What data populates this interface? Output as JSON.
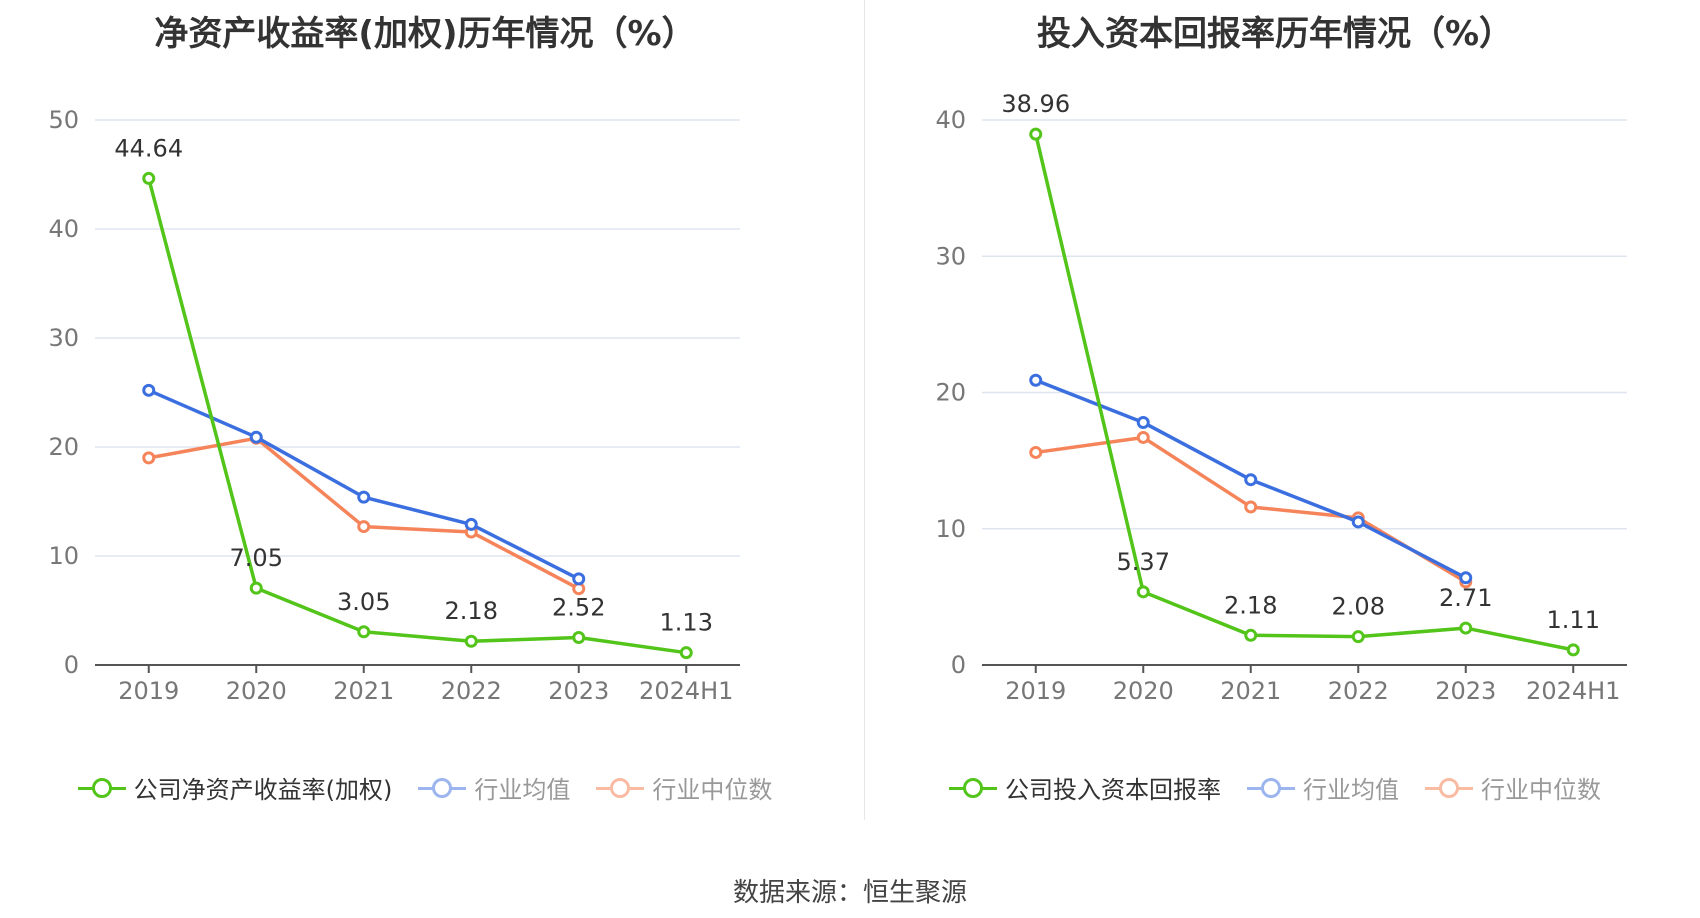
{
  "source_label": "数据来源：恒生聚源",
  "colors": {
    "company": "#52c41a",
    "mean": "#3b6fe0",
    "median": "#f5845a",
    "grid": "#dfe5f0",
    "axis": "#555555",
    "tick_text": "#777777"
  },
  "chart_data": [
    {
      "type": "line",
      "title": "净资产收益率(加权)历年情况（%）",
      "categories": [
        "2019",
        "2020",
        "2021",
        "2022",
        "2023",
        "2024H1"
      ],
      "ylim": [
        0,
        50
      ],
      "yticks": [
        0,
        10,
        20,
        30,
        40,
        50
      ],
      "grid": true,
      "legend_position": "bottom",
      "series": [
        {
          "name": "公司净资产收益率(加权)",
          "key": "company",
          "values": [
            44.64,
            7.05,
            3.05,
            2.18,
            2.52,
            1.13
          ],
          "labels": [
            "44.64",
            "7.05",
            "3.05",
            "2.18",
            "2.52",
            "1.13"
          ]
        },
        {
          "name": "行业均值",
          "key": "mean",
          "values": [
            25.2,
            20.9,
            15.4,
            12.9,
            7.9,
            null
          ]
        },
        {
          "name": "行业中位数",
          "key": "median",
          "values": [
            19.0,
            20.8,
            12.7,
            12.2,
            7.0,
            null
          ]
        }
      ]
    },
    {
      "type": "line",
      "title": "投入资本回报率历年情况（%）",
      "categories": [
        "2019",
        "2020",
        "2021",
        "2022",
        "2023",
        "2024H1"
      ],
      "ylim": [
        0,
        40
      ],
      "yticks": [
        0,
        10,
        20,
        30,
        40
      ],
      "grid": true,
      "legend_position": "bottom",
      "series": [
        {
          "name": "公司投入资本回报率",
          "key": "company",
          "values": [
            38.96,
            5.37,
            2.18,
            2.08,
            2.71,
            1.11
          ],
          "labels": [
            "38.96",
            "5.37",
            "2.18",
            "2.08",
            "2.71",
            "1.11"
          ]
        },
        {
          "name": "行业均值",
          "key": "mean",
          "values": [
            20.9,
            17.8,
            13.6,
            10.5,
            6.4,
            null
          ]
        },
        {
          "name": "行业中位数",
          "key": "median",
          "values": [
            15.6,
            16.7,
            11.6,
            10.8,
            6.1,
            null
          ]
        }
      ]
    }
  ]
}
